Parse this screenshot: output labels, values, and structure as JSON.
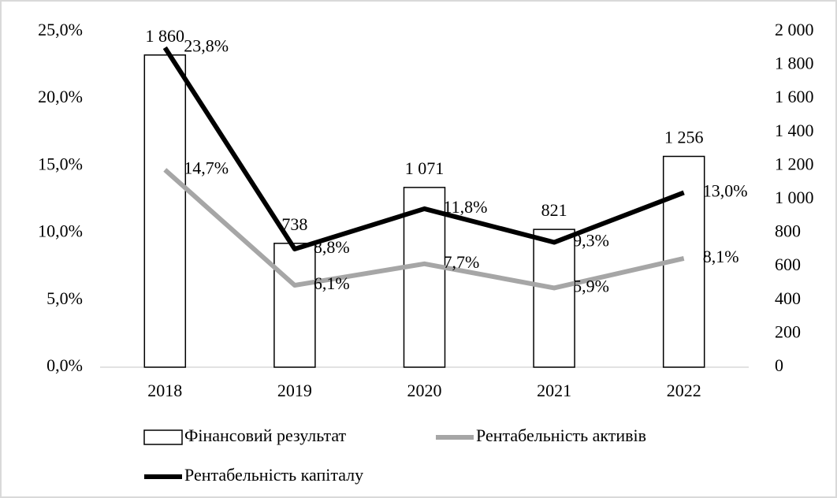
{
  "chart_data": {
    "type": "bar",
    "categories": [
      "2018",
      "2019",
      "2020",
      "2021",
      "2022"
    ],
    "series": [
      {
        "name": "Фінансовий результат",
        "type": "bar",
        "axis": "y2",
        "color": "#ffffff",
        "values": [
          1860,
          738,
          1071,
          821,
          1256
        ],
        "value_labels": [
          "1 860",
          "738",
          "1 071",
          "821",
          "1 256"
        ]
      },
      {
        "name": "Рентабельність активів",
        "type": "line",
        "color": "#a6a6a6",
        "values": [
          14.7,
          6.1,
          7.7,
          5.9,
          8.1
        ],
        "value_labels": [
          "14,7%",
          "6,1%",
          "7,7%",
          "5,9%",
          "8,1%"
        ]
      },
      {
        "name": "Рентабельність капіталу",
        "type": "line",
        "color": "#000000",
        "values": [
          23.8,
          8.8,
          11.8,
          9.3,
          13.0
        ],
        "value_labels": [
          "23,8%",
          "8,8%",
          "11,8%",
          "9,3%",
          "13,0%"
        ]
      }
    ],
    "ylim": [
      0,
      25
    ],
    "yticks": [
      {
        "value": 0,
        "label": "0,0%"
      },
      {
        "value": 5,
        "label": "5,0%"
      },
      {
        "value": 10,
        "label": "10,0%"
      },
      {
        "value": 15,
        "label": "15,0%"
      },
      {
        "value": 20,
        "label": "20,0%"
      },
      {
        "value": 25,
        "label": "25,0%"
      }
    ],
    "y2lim": [
      0,
      2000
    ],
    "y2ticks": [
      0,
      200,
      400,
      600,
      800,
      {
        "value": 1000,
        "label": "1 000"
      },
      {
        "value": 1200,
        "label": "1 200"
      },
      {
        "value": 1400,
        "label": "1 400"
      },
      {
        "value": 1600,
        "label": "1 600"
      },
      {
        "value": 1800,
        "label": "1 800"
      },
      {
        "value": 2000,
        "label": "2 000"
      }
    ],
    "legend": "bottom",
    "grid": false
  }
}
